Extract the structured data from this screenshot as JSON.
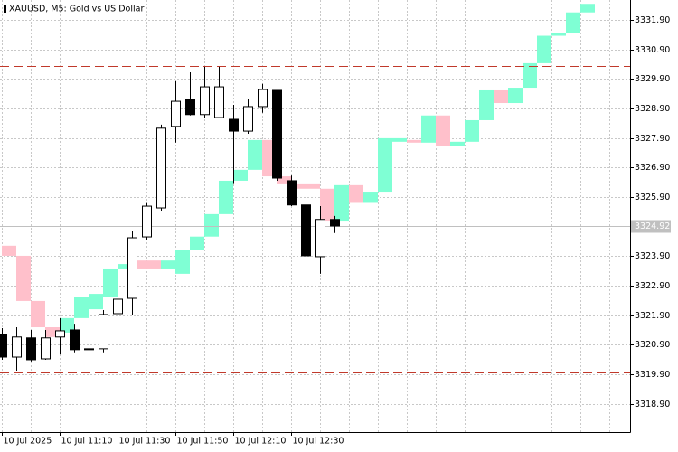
{
  "chart_data": {
    "type": "candlestick",
    "title": "XAUUSD, M5:  Gold vs US Dollar",
    "categories": [
      "10 Jul 2025",
      null,
      null,
      null,
      "10 Jul 11:10",
      null,
      null,
      null,
      "10 Jul 11:30",
      null,
      null,
      null,
      "10 Jul 11:50",
      null,
      null,
      null,
      "10 Jul 12:10",
      null,
      null,
      null,
      "10 Jul 12:30",
      null,
      null,
      null
    ],
    "open": [
      3321.25,
      3320.48,
      3321.13,
      3320.42,
      3321.16,
      3321.4,
      3320.76,
      3320.76,
      3321.95,
      3322.47,
      3324.55,
      3325.53,
      3328.29,
      3329.2,
      3328.69,
      3328.59,
      3328.53,
      3328.13,
      3328.96,
      3329.51,
      3326.45,
      3325.63,
      3323.88,
      3325.14
    ],
    "high": [
      3321.46,
      3321.49,
      3321.4,
      3321.4,
      3321.8,
      3321.61,
      3321.19,
      3322.07,
      3322.59,
      3324.74,
      3325.69,
      3328.35,
      3329.82,
      3330.12,
      3330.31,
      3330.31,
      3329.02,
      3329.21,
      3329.73,
      3329.51,
      3326.63,
      3325.81,
      3325.59,
      3325.26
    ],
    "low": [
      3320.39,
      3320.02,
      3320.33,
      3320.39,
      3320.57,
      3320.64,
      3320.18,
      3320.64,
      3321.89,
      3321.92,
      3324.46,
      3325.44,
      3327.74,
      3328.66,
      3328.59,
      3328.56,
      3326.37,
      3328.04,
      3328.75,
      3326.45,
      3325.59,
      3323.7,
      3323.3,
      3324.68
    ],
    "close": [
      3320.48,
      3321.16,
      3320.39,
      3321.13,
      3321.37,
      3320.73,
      3320.76,
      3321.92,
      3322.44,
      3324.52,
      3325.59,
      3328.23,
      3329.14,
      3328.69,
      3329.63,
      3329.63,
      3328.13,
      3328.96,
      3329.54,
      3326.54,
      3325.63,
      3323.91,
      3325.14,
      3324.92
    ],
    "up_color": "#ffffff",
    "down_color": "#000000",
    "bricks": {
      "open": [
        3324.25,
        3323.91,
        3322.38,
        3321.49,
        3321.31,
        3321.8,
        3322.1,
        3322.53,
        3323.45,
        3323.75,
        3323.75,
        3323.45,
        3323.3,
        3324.1,
        3324.56,
        3325.32,
        3326.45,
        3326.82,
        3327.83,
        3326.6,
        3326.36,
        3326.36,
        3326.18,
        3325.07,
        3326.3,
        3325.7,
        3326.08,
        3327.77,
        3327.83,
        3327.74,
        3328.66,
        3327.62,
        3327.77,
        3328.5,
        3329.51,
        3329.08,
        3329.6,
        3330.43,
        3331.36,
        3331.45,
        3332.15
      ],
      "close": [
        3323.91,
        3322.38,
        3321.49,
        3321.16,
        3321.8,
        3322.53,
        3322.62,
        3323.45,
        3323.63,
        3323.45,
        3323.45,
        3323.75,
        3324.1,
        3324.56,
        3325.32,
        3326.45,
        3326.82,
        3327.83,
        3326.6,
        3326.36,
        3326.18,
        3326.18,
        3325.07,
        3326.3,
        3325.7,
        3326.08,
        3327.89,
        3327.89,
        3327.74,
        3328.66,
        3327.62,
        3327.77,
        3328.5,
        3329.51,
        3329.08,
        3329.6,
        3330.43,
        3331.36,
        3331.45,
        3332.15,
        3332.44
      ],
      "up_color": "#7fffd4",
      "down_color": "#ffc0cb"
    },
    "levels": [
      {
        "value": 3330.34,
        "color": "#c0392b"
      },
      {
        "value": 3319.96,
        "color": "#c0392b"
      },
      {
        "value": 3320.64,
        "color": "#2e9e3e"
      }
    ],
    "last": {
      "value": 3324.92,
      "color": "#c0c0c0"
    },
    "ylim": [
      3317.94,
      3332.57
    ],
    "yticks": [
      {
        "value": 3331.9,
        "label": "3331.90"
      },
      {
        "value": 3330.9,
        "label": "3330.90"
      },
      {
        "value": 3329.9,
        "label": "3329.90"
      },
      {
        "value": 3328.9,
        "label": "3328.90"
      },
      {
        "value": 3327.9,
        "label": "3327.90"
      },
      {
        "value": 3326.9,
        "label": "3326.90"
      },
      {
        "value": 3325.9,
        "label": "3325.90"
      },
      {
        "value": 3323.9,
        "label": "3323.90"
      },
      {
        "value": 3322.9,
        "label": "3322.90"
      },
      {
        "value": 3321.9,
        "label": "3321.90"
      },
      {
        "value": 3320.9,
        "label": "3320.90"
      },
      {
        "value": 3319.9,
        "label": "3319.90"
      },
      {
        "value": 3318.9,
        "label": "3318.90"
      }
    ],
    "grid": true
  }
}
